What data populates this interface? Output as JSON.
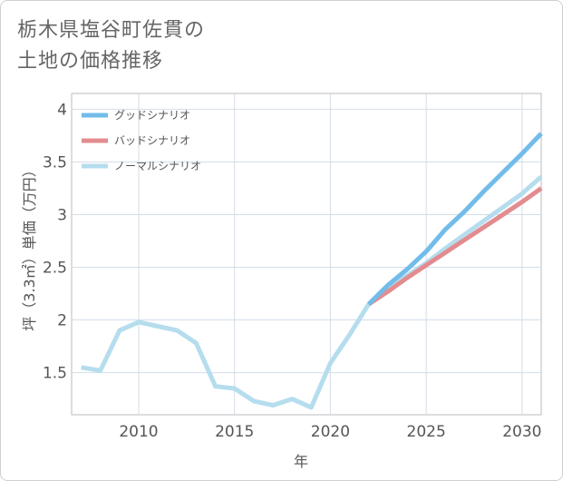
{
  "title_lines": [
    "栃木県塩谷町佐貫の",
    "土地の価格推移"
  ],
  "chart_data": {
    "type": "line",
    "title": "栃木県塩谷町佐貫の土地の価格推移",
    "xlabel": "年",
    "ylabel": "坪（3.3㎡）単価（万円）",
    "xlim": [
      2006.5,
      2031
    ],
    "ylim": [
      1.1,
      4.15
    ],
    "xticks": [
      2010,
      2015,
      2020,
      2025,
      2030
    ],
    "yticks": [
      1.5,
      2,
      2.5,
      3,
      3.5,
      4
    ],
    "ytick_labels": [
      "1.5",
      "2",
      "2.5",
      "3",
      "3.5",
      "4"
    ],
    "legend_position": "top-left",
    "series": [
      {
        "name": "グッドシナリオ",
        "color": "#72bcea",
        "x": [
          2022,
          2023,
          2024,
          2025,
          2026,
          2027,
          2028,
          2029,
          2030,
          2031
        ],
        "values": [
          2.15,
          2.33,
          2.48,
          2.65,
          2.86,
          3.03,
          3.22,
          3.4,
          3.58,
          3.77
        ]
      },
      {
        "name": "バッドシナリオ",
        "color": "#e38c90",
        "x": [
          2022,
          2023,
          2024,
          2025,
          2026,
          2027,
          2028,
          2029,
          2030,
          2031
        ],
        "values": [
          2.15,
          2.27,
          2.4,
          2.52,
          2.64,
          2.76,
          2.88,
          3.0,
          3.12,
          3.25
        ]
      },
      {
        "name": "ノーマルシナリオ",
        "color": "#b5ddee",
        "x": [
          2007,
          2008,
          2009,
          2010,
          2011,
          2012,
          2013,
          2014,
          2015,
          2016,
          2017,
          2018,
          2019,
          2020,
          2021,
          2022,
          2023,
          2024,
          2025,
          2026,
          2027,
          2028,
          2029,
          2030,
          2031
        ],
        "values": [
          1.55,
          1.52,
          1.9,
          1.98,
          1.94,
          1.9,
          1.78,
          1.37,
          1.35,
          1.23,
          1.19,
          1.25,
          1.17,
          1.59,
          1.86,
          2.15,
          2.3,
          2.42,
          2.54,
          2.68,
          2.81,
          2.94,
          3.07,
          3.2,
          3.36
        ]
      }
    ]
  }
}
